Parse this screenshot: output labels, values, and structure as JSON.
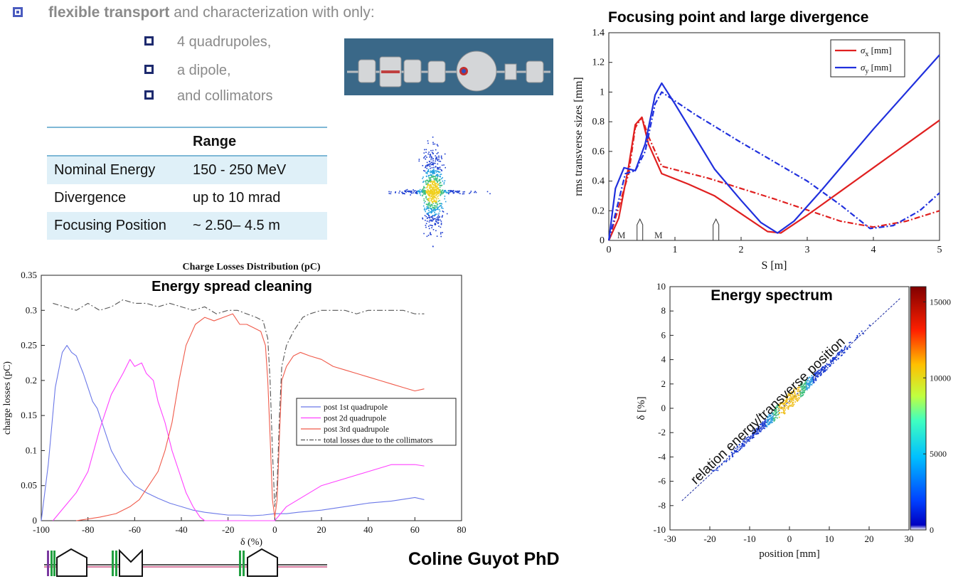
{
  "intro": {
    "bold": "flexible transport",
    "rest": " and characterization with only:"
  },
  "bullets": [
    "4 quadrupoles,",
    "a dipole,",
    "and collimators"
  ],
  "range_table": {
    "header": "Range",
    "rows": [
      {
        "label": "Nominal Energy",
        "value": "150 - 250 MeV"
      },
      {
        "label": "Divergence",
        "value": "up to 10 mrad"
      },
      {
        "label": "Focusing Position",
        "value": " ~ 2.50– 4.5 m"
      }
    ]
  },
  "author": "Coline Guyot PhD",
  "colors": {
    "blue": "#2030dd",
    "red": "#e02020",
    "magenta": "#ff40ff",
    "salmon": "#f05a4a",
    "lightblue": "#6b78e8",
    "bullet": "#4a5bbf"
  },
  "chart_data": [
    {
      "type": "line",
      "title": "Focusing point and large divergence",
      "xlabel": "S [m]",
      "ylabel": "rms transverse sizes [mm]",
      "xlim": [
        0,
        5
      ],
      "ylim": [
        0,
        1.4
      ],
      "xticks": [
        0,
        1,
        2,
        3,
        4,
        5
      ],
      "yticks": [
        0,
        0.2,
        0.4,
        0.6,
        0.8,
        1,
        1.2,
        1.4
      ],
      "legend_position": "top-right",
      "legend": [
        {
          "sym": "σ",
          "sub": "x",
          "unit": " [mm]"
        },
        {
          "sym": "σ",
          "sub": "y",
          "unit": " [mm]"
        }
      ],
      "element_labels": [
        "M",
        "M"
      ],
      "series": [
        {
          "color": "#e02020",
          "dash": false,
          "x": [
            0,
            0.15,
            0.3,
            0.4,
            0.5,
            0.6,
            0.8,
            1.2,
            1.6,
            2.0,
            2.4,
            2.6,
            3.0,
            3.5,
            4.0,
            4.5,
            5.0
          ],
          "y": [
            0,
            0.15,
            0.5,
            0.78,
            0.83,
            0.65,
            0.45,
            0.38,
            0.3,
            0.18,
            0.06,
            0.05,
            0.17,
            0.33,
            0.49,
            0.65,
            0.81
          ]
        },
        {
          "color": "#e02020",
          "dash": true,
          "x": [
            0,
            0.3,
            0.4,
            0.5,
            0.6,
            0.8,
            1.5,
            2.5,
            3.5,
            4.0,
            4.5,
            5.0
          ],
          "y": [
            0,
            0.45,
            0.76,
            0.83,
            0.7,
            0.5,
            0.42,
            0.28,
            0.13,
            0.09,
            0.13,
            0.2
          ]
        },
        {
          "color": "#2030dd",
          "dash": false,
          "x": [
            0,
            0.1,
            0.23,
            0.4,
            0.55,
            0.7,
            0.8,
            1.0,
            1.3,
            1.6,
            2.0,
            2.3,
            2.55,
            2.8,
            3.2,
            3.6,
            4.0,
            4.5,
            5.0
          ],
          "y": [
            0,
            0.35,
            0.49,
            0.47,
            0.65,
            0.98,
            1.06,
            0.92,
            0.7,
            0.48,
            0.27,
            0.12,
            0.05,
            0.13,
            0.33,
            0.54,
            0.75,
            1.0,
            1.25
          ]
        },
        {
          "color": "#2030dd",
          "dash": true,
          "x": [
            0,
            0.25,
            0.4,
            0.55,
            0.7,
            0.8,
            1.3,
            2.0,
            3.0,
            3.5,
            3.95,
            4.3,
            4.7,
            5.0
          ],
          "y": [
            0,
            0.45,
            0.47,
            0.6,
            0.92,
            1.0,
            0.85,
            0.66,
            0.4,
            0.24,
            0.08,
            0.1,
            0.2,
            0.32
          ]
        }
      ]
    },
    {
      "type": "line",
      "title": "Charge Losses Distribution (pC)",
      "subtitle": "Energy spread cleaning",
      "xlabel": "δ (%)",
      "ylabel": "charge losses (pC)",
      "xlim": [
        -100,
        80
      ],
      "ylim": [
        0,
        0.35
      ],
      "xticks": [
        -100,
        -80,
        -60,
        -40,
        -20,
        0,
        20,
        40,
        60,
        80
      ],
      "yticks": [
        0,
        0.05,
        0.1,
        0.15,
        0.2,
        0.25,
        0.3,
        0.35
      ],
      "legend_position": "center-right",
      "series": [
        {
          "name": "post 1st quadrupole",
          "color": "#6b78e8",
          "dash": false,
          "x": [
            -100,
            -97,
            -94,
            -91,
            -89,
            -87,
            -85,
            -82,
            -80,
            -78,
            -76,
            -74,
            -70,
            -65,
            -60,
            -55,
            -50,
            -45,
            -40,
            -35,
            -30,
            -25,
            -20,
            -15,
            -10,
            -5,
            0,
            5,
            10,
            20,
            30,
            40,
            50,
            60,
            64
          ],
          "y": [
            0,
            0.08,
            0.19,
            0.24,
            0.25,
            0.24,
            0.235,
            0.21,
            0.19,
            0.17,
            0.16,
            0.14,
            0.1,
            0.07,
            0.05,
            0.04,
            0.032,
            0.025,
            0.02,
            0.015,
            0.012,
            0.01,
            0.008,
            0.008,
            0.007,
            0.008,
            0.01,
            0.01,
            0.012,
            0.015,
            0.02,
            0.025,
            0.028,
            0.033,
            0.03
          ]
        },
        {
          "name": "post 2d quadrupole",
          "color": "#ff40ff",
          "dash": false,
          "x": [
            -95,
            -90,
            -85,
            -80,
            -75,
            -70,
            -65,
            -62,
            -60,
            -57,
            -55,
            -52,
            -50,
            -47,
            -44,
            -41,
            -38,
            -35,
            -32,
            -30,
            -20,
            0,
            5,
            10,
            20,
            30,
            40,
            50,
            60,
            64
          ],
          "y": [
            0,
            0.02,
            0.04,
            0.07,
            0.13,
            0.18,
            0.21,
            0.23,
            0.22,
            0.225,
            0.21,
            0.2,
            0.17,
            0.14,
            0.1,
            0.07,
            0.04,
            0.02,
            0.005,
            0,
            0,
            0,
            0.02,
            0.03,
            0.05,
            0.06,
            0.07,
            0.08,
            0.08,
            0.078
          ]
        },
        {
          "name": "post 3rd quadrupole",
          "color": "#f05a4a",
          "dash": false,
          "x": [
            -85,
            -75,
            -68,
            -62,
            -58,
            -54,
            -50,
            -47,
            -44,
            -41,
            -38,
            -34,
            -30,
            -26,
            -22,
            -18,
            -15,
            -12,
            -9,
            -6,
            -4,
            -3,
            -2,
            -1,
            0,
            1,
            2,
            3,
            5,
            8,
            11,
            15,
            20,
            25,
            30,
            35,
            40,
            45,
            50,
            55,
            60,
            64
          ],
          "y": [
            0,
            0.005,
            0.01,
            0.02,
            0.03,
            0.05,
            0.07,
            0.1,
            0.14,
            0.2,
            0.25,
            0.28,
            0.29,
            0.285,
            0.29,
            0.295,
            0.28,
            0.28,
            0.275,
            0.27,
            0.25,
            0.2,
            0.12,
            0.03,
            0.005,
            0.03,
            0.12,
            0.2,
            0.22,
            0.235,
            0.24,
            0.235,
            0.23,
            0.22,
            0.215,
            0.21,
            0.205,
            0.2,
            0.195,
            0.19,
            0.185,
            0.188
          ]
        },
        {
          "name": "total losses due to the collimators",
          "color": "#555555",
          "dash": true,
          "x": [
            -95,
            -90,
            -85,
            -80,
            -75,
            -70,
            -65,
            -60,
            -55,
            -50,
            -45,
            -40,
            -35,
            -30,
            -25,
            -20,
            -16,
            -12,
            -8,
            -5,
            -3,
            -2,
            -1,
            0,
            1,
            2,
            3,
            5,
            8,
            12,
            15,
            20,
            25,
            30,
            35,
            40,
            45,
            50,
            55,
            60,
            64
          ],
          "y": [
            0.31,
            0.305,
            0.3,
            0.31,
            0.3,
            0.305,
            0.315,
            0.31,
            0.31,
            0.305,
            0.31,
            0.305,
            0.3,
            0.305,
            0.295,
            0.3,
            0.3,
            0.295,
            0.29,
            0.285,
            0.26,
            0.2,
            0.1,
            0.02,
            0.05,
            0.15,
            0.22,
            0.25,
            0.27,
            0.29,
            0.295,
            0.3,
            0.3,
            0.3,
            0.295,
            0.3,
            0.3,
            0.3,
            0.3,
            0.295,
            0.295
          ]
        }
      ]
    },
    {
      "type": "scatter",
      "title": "Energy spectrum",
      "annotation": "relation energy/transverse position",
      "xlabel": "position [mm]",
      "ylabel": "δ [%]",
      "xlim": [
        -30,
        30
      ],
      "ylim": [
        -10,
        10
      ],
      "xticks": [
        -30,
        -20,
        -10,
        0,
        10,
        20,
        30
      ],
      "yticks": [
        -10,
        -8,
        -6,
        -4,
        -2,
        0,
        2,
        4,
        6,
        8,
        10
      ],
      "colorbar": {
        "min": 0,
        "max": 16000,
        "ticks": [
          0,
          5000,
          10000,
          15000
        ]
      },
      "fit_line": {
        "x": [
          -27,
          28
        ],
        "y": [
          -7.6,
          9.1
        ]
      }
    }
  ]
}
